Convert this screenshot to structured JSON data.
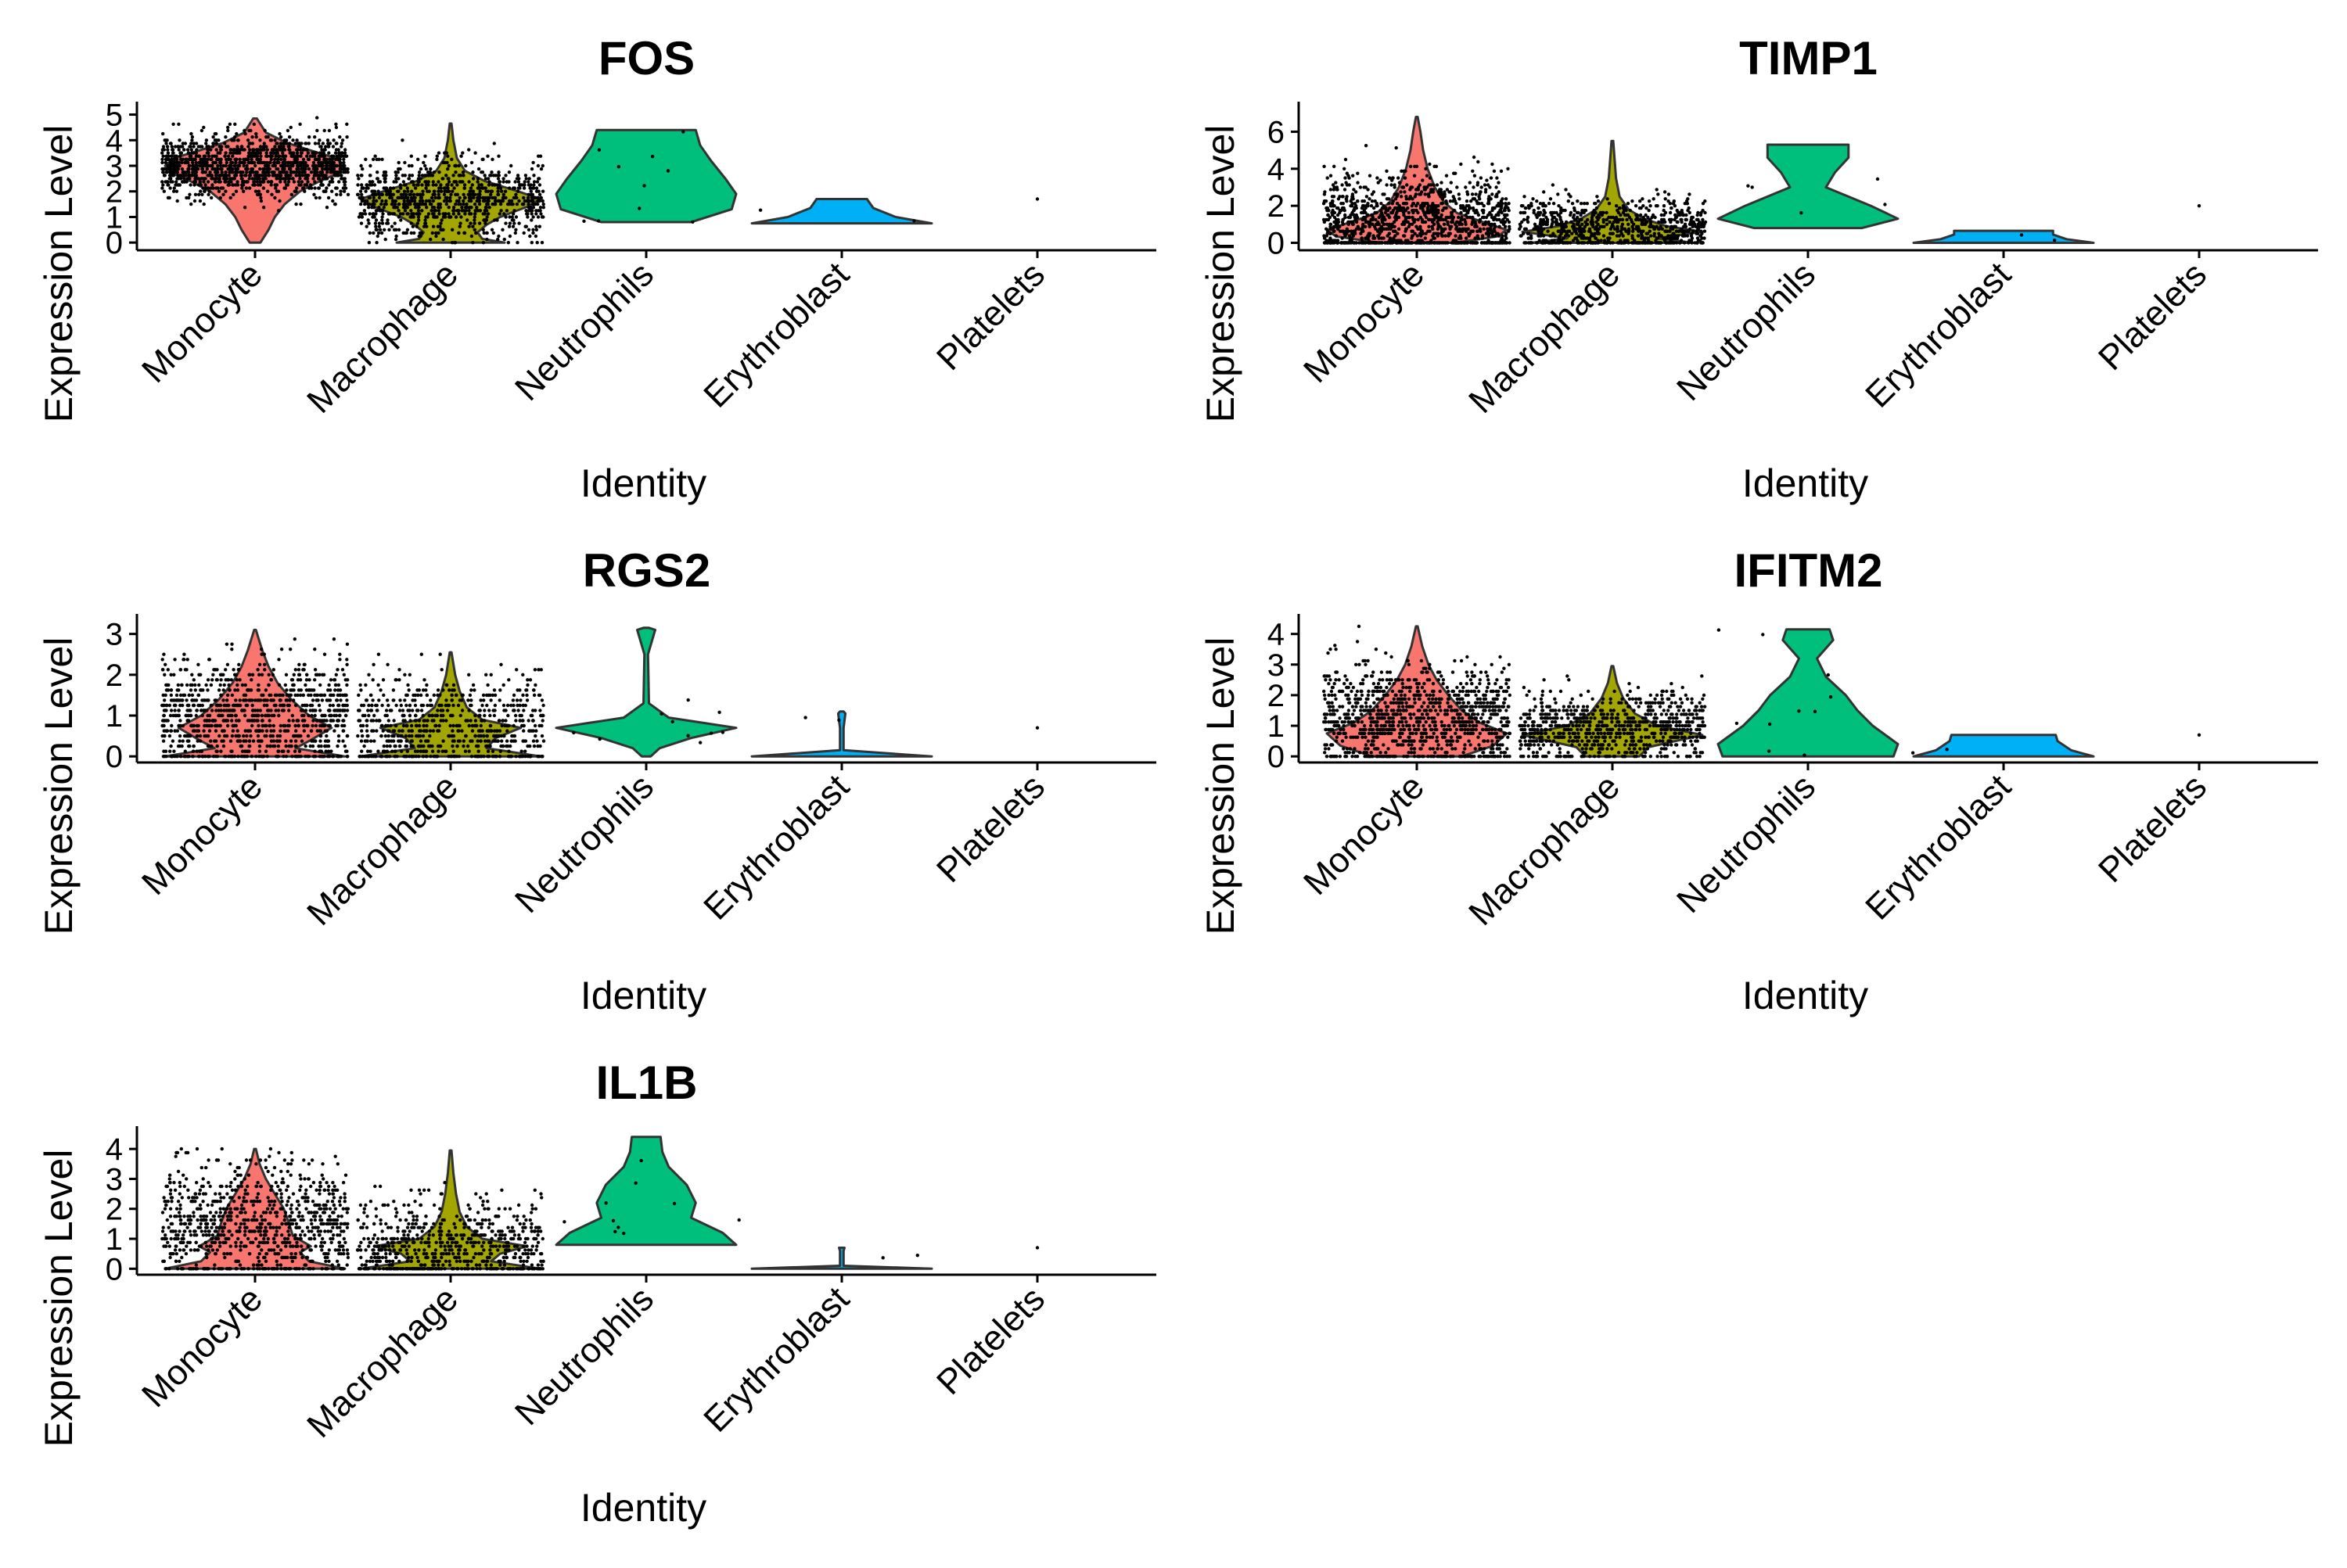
{
  "chart_data": [
    {
      "type": "violin",
      "title": "FOS",
      "xlabel": "Identity",
      "ylabel": "Expression Level",
      "ylim": [
        -0.3,
        5.2
      ],
      "yticks": [
        0,
        1,
        2,
        3,
        4,
        5
      ],
      "categories": [
        "Monocyte",
        "Macrophage",
        "Neutrophils",
        "Erythroblast",
        "Platelets"
      ],
      "colors": [
        "#F8766D",
        "#A3A500",
        "#00BF7D",
        "#00B0F6",
        "#E76BF3"
      ],
      "violins": [
        {
          "category": "Monocyte",
          "min": 0,
          "max": 4.85,
          "profile": [
            [
              0,
              0.06
            ],
            [
              0.5,
              0.15
            ],
            [
              1,
              0.22
            ],
            [
              1.5,
              0.33
            ],
            [
              2,
              0.5
            ],
            [
              2.4,
              0.72
            ],
            [
              2.7,
              0.92
            ],
            [
              3.0,
              1.0
            ],
            [
              3.3,
              0.9
            ],
            [
              3.6,
              0.62
            ],
            [
              3.9,
              0.35
            ],
            [
              4.3,
              0.12
            ],
            [
              4.85,
              0.02
            ]
          ],
          "point_count": 1300,
          "point_mean": 3.0,
          "point_sd": 0.6
        },
        {
          "category": "Macrophage",
          "min": 0,
          "max": 4.65,
          "profile": [
            [
              0,
              0.6
            ],
            [
              0.15,
              0.35
            ],
            [
              0.4,
              0.3
            ],
            [
              0.7,
              0.4
            ],
            [
              1.0,
              0.55
            ],
            [
              1.4,
              0.85
            ],
            [
              1.7,
              1.0
            ],
            [
              2.0,
              0.75
            ],
            [
              2.4,
              0.38
            ],
            [
              2.8,
              0.16
            ],
            [
              3.3,
              0.07
            ],
            [
              4.0,
              0.03
            ],
            [
              4.65,
              0.01
            ]
          ],
          "point_count": 900,
          "point_mean": 1.75,
          "point_sd": 0.75
        },
        {
          "category": "Neutrophils",
          "min": 0.8,
          "max": 4.4,
          "profile": [
            [
              0.8,
              0.5
            ],
            [
              1.3,
              0.95
            ],
            [
              1.9,
              1.0
            ],
            [
              2.5,
              0.88
            ],
            [
              3.2,
              0.72
            ],
            [
              3.8,
              0.6
            ],
            [
              4.4,
              0.55
            ]
          ],
          "point_count": 10,
          "point_mean": 2.5,
          "point_sd": 1.2
        },
        {
          "category": "Erythroblast",
          "min": 0.75,
          "max": 1.7,
          "profile": [
            [
              0.75,
              1.0
            ],
            [
              1.0,
              0.6
            ],
            [
              1.35,
              0.35
            ],
            [
              1.7,
              0.28
            ]
          ],
          "point_count": 2,
          "point_mean": 1.1,
          "point_sd": 0.2
        },
        {
          "category": "Platelets",
          "min": 1.7,
          "max": 1.7,
          "profile": [],
          "point_count": 1,
          "point_mean": 1.7,
          "point_sd": 0
        }
      ]
    },
    {
      "type": "violin",
      "title": "TIMP1",
      "xlabel": "Identity",
      "ylabel": "Expression Level",
      "ylim": [
        -0.4,
        7.2
      ],
      "yticks": [
        0,
        2,
        4,
        6
      ],
      "categories": [
        "Monocyte",
        "Macrophage",
        "Neutrophils",
        "Erythroblast",
        "Platelets"
      ],
      "colors": [
        "#F8766D",
        "#A3A500",
        "#00BF7D",
        "#00B0F6",
        "#E76BF3"
      ],
      "violins": [
        {
          "category": "Monocyte",
          "min": 0,
          "max": 6.8,
          "profile": [
            [
              0,
              0.42
            ],
            [
              0.35,
              0.9
            ],
            [
              0.7,
              1.0
            ],
            [
              1.1,
              0.75
            ],
            [
              1.6,
              0.45
            ],
            [
              2.2,
              0.3
            ],
            [
              3.0,
              0.2
            ],
            [
              4.0,
              0.12
            ],
            [
              5.0,
              0.07
            ],
            [
              6.0,
              0.04
            ],
            [
              6.8,
              0.01
            ]
          ],
          "point_count": 1200,
          "point_mean": 1.2,
          "point_sd": 1.3
        },
        {
          "category": "Macrophage",
          "min": 0,
          "max": 5.5,
          "profile": [
            [
              0,
              0.9
            ],
            [
              0.25,
              0.5
            ],
            [
              0.6,
              1.0
            ],
            [
              0.9,
              0.6
            ],
            [
              1.3,
              0.35
            ],
            [
              1.8,
              0.18
            ],
            [
              2.5,
              0.08
            ],
            [
              3.5,
              0.04
            ],
            [
              5.5,
              0.01
            ]
          ],
          "point_count": 800,
          "point_mean": 0.8,
          "point_sd": 0.8
        },
        {
          "category": "Neutrophils",
          "min": 0.8,
          "max": 5.3,
          "profile": [
            [
              0.8,
              0.6
            ],
            [
              1.3,
              1.0
            ],
            [
              2.0,
              0.7
            ],
            [
              3.0,
              0.2
            ],
            [
              3.8,
              0.3
            ],
            [
              4.6,
              0.45
            ],
            [
              5.3,
              0.45
            ]
          ],
          "point_count": 5,
          "point_mean": 2.5,
          "point_sd": 1.6
        },
        {
          "category": "Erythroblast",
          "min": 0,
          "max": 0.65,
          "profile": [
            [
              0,
              1.0
            ],
            [
              0.2,
              0.7
            ],
            [
              0.45,
              0.55
            ],
            [
              0.65,
              0.55
            ]
          ],
          "point_count": 2,
          "point_mean": 0.3,
          "point_sd": 0.2
        },
        {
          "category": "Platelets",
          "min": 2.0,
          "max": 2.0,
          "profile": [],
          "point_count": 1,
          "point_mean": 2.0,
          "point_sd": 0
        }
      ]
    },
    {
      "type": "violin",
      "title": "RGS2",
      "xlabel": "Identity",
      "ylabel": "Expression Level",
      "ylim": [
        -0.15,
        3.3
      ],
      "yticks": [
        0,
        1,
        2,
        3
      ],
      "categories": [
        "Monocyte",
        "Macrophage",
        "Neutrophils",
        "Erythroblast",
        "Platelets"
      ],
      "colors": [
        "#F8766D",
        "#A3A500",
        "#00BF7D",
        "#00B0F6",
        "#E76BF3"
      ],
      "violins": [
        {
          "category": "Monocyte",
          "min": 0,
          "max": 3.1,
          "profile": [
            [
              0,
              1.0
            ],
            [
              0.2,
              0.45
            ],
            [
              0.4,
              0.62
            ],
            [
              0.7,
              0.85
            ],
            [
              1.0,
              0.6
            ],
            [
              1.4,
              0.4
            ],
            [
              1.8,
              0.25
            ],
            [
              2.2,
              0.15
            ],
            [
              2.6,
              0.08
            ],
            [
              3.1,
              0.01
            ]
          ],
          "point_count": 1000,
          "point_mean": 1.0,
          "point_sd": 0.7
        },
        {
          "category": "Macrophage",
          "min": 0,
          "max": 2.55,
          "profile": [
            [
              0,
              1.0
            ],
            [
              0.2,
              0.4
            ],
            [
              0.45,
              0.5
            ],
            [
              0.7,
              0.78
            ],
            [
              0.9,
              0.35
            ],
            [
              1.2,
              0.18
            ],
            [
              1.6,
              0.1
            ],
            [
              2.0,
              0.05
            ],
            [
              2.55,
              0.01
            ]
          ],
          "point_count": 700,
          "point_mean": 0.7,
          "point_sd": 0.6
        },
        {
          "category": "Neutrophils",
          "min": 0,
          "max": 3.15,
          "profile": [
            [
              0,
              0.05
            ],
            [
              0.2,
              0.15
            ],
            [
              0.45,
              0.5
            ],
            [
              0.7,
              1.0
            ],
            [
              0.95,
              0.25
            ],
            [
              1.3,
              0.03
            ],
            [
              2.5,
              0.02
            ],
            [
              3.1,
              0.1
            ],
            [
              3.15,
              0.03
            ]
          ],
          "point_count": 10,
          "point_mean": 0.7,
          "point_sd": 0.3
        },
        {
          "category": "Erythroblast",
          "min": 0,
          "max": 1.1,
          "profile": [
            [
              0,
              1.0
            ],
            [
              0.15,
              0.02
            ],
            [
              0.7,
              0.02
            ],
            [
              1.05,
              0.04
            ],
            [
              1.1,
              0.02
            ]
          ],
          "point_count": 2,
          "point_mean": 0.6,
          "point_sd": 0.4
        },
        {
          "category": "Platelets",
          "min": 0.7,
          "max": 0.7,
          "profile": [],
          "point_count": 1,
          "point_mean": 0.7,
          "point_sd": 0
        }
      ]
    },
    {
      "type": "violin",
      "title": "IFITM2",
      "xlabel": "Identity",
      "ylabel": "Expression Level",
      "ylim": [
        -0.2,
        4.4
      ],
      "yticks": [
        0,
        1,
        2,
        3,
        4
      ],
      "categories": [
        "Monocyte",
        "Macrophage",
        "Neutrophils",
        "Erythroblast",
        "Platelets"
      ],
      "colors": [
        "#F8766D",
        "#A3A500",
        "#00BF7D",
        "#00B0F6",
        "#E76BF3"
      ],
      "violins": [
        {
          "category": "Monocyte",
          "min": 0,
          "max": 4.25,
          "profile": [
            [
              0,
              0.5
            ],
            [
              0.35,
              0.85
            ],
            [
              0.75,
              1.0
            ],
            [
              1.1,
              0.7
            ],
            [
              1.5,
              0.5
            ],
            [
              2.0,
              0.35
            ],
            [
              2.5,
              0.22
            ],
            [
              3.0,
              0.13
            ],
            [
              3.6,
              0.06
            ],
            [
              4.25,
              0.01
            ]
          ],
          "point_count": 1100,
          "point_mean": 1.3,
          "point_sd": 0.9
        },
        {
          "category": "Macrophage",
          "min": 0,
          "max": 2.95,
          "profile": [
            [
              0,
              0.3
            ],
            [
              0.3,
              0.4
            ],
            [
              0.7,
              1.0
            ],
            [
              1.0,
              0.5
            ],
            [
              1.4,
              0.25
            ],
            [
              1.9,
              0.12
            ],
            [
              2.4,
              0.05
            ],
            [
              2.95,
              0.01
            ]
          ],
          "point_count": 800,
          "point_mean": 0.9,
          "point_sd": 0.6
        },
        {
          "category": "Neutrophils",
          "min": 0,
          "max": 4.15,
          "profile": [
            [
              0,
              0.95
            ],
            [
              0.4,
              1.0
            ],
            [
              1.0,
              0.72
            ],
            [
              1.5,
              0.55
            ],
            [
              2.0,
              0.42
            ],
            [
              2.6,
              0.2
            ],
            [
              3.2,
              0.1
            ],
            [
              3.8,
              0.28
            ],
            [
              4.15,
              0.24
            ]
          ],
          "point_count": 10,
          "point_mean": 1.5,
          "point_sd": 1.1
        },
        {
          "category": "Erythroblast",
          "min": 0,
          "max": 0.7,
          "profile": [
            [
              0,
              1.0
            ],
            [
              0.2,
              0.75
            ],
            [
              0.5,
              0.6
            ],
            [
              0.7,
              0.58
            ]
          ],
          "point_count": 2,
          "point_mean": 0.35,
          "point_sd": 0.2
        },
        {
          "category": "Platelets",
          "min": 0.7,
          "max": 0.7,
          "profile": [],
          "point_count": 1,
          "point_mean": 0.7,
          "point_sd": 0
        }
      ]
    },
    {
      "type": "violin",
      "title": "IL1B",
      "xlabel": "Identity",
      "ylabel": "Expression Level",
      "ylim": [
        -0.2,
        4.5
      ],
      "yticks": [
        0,
        1,
        2,
        3,
        4
      ],
      "categories": [
        "Monocyte",
        "Macrophage",
        "Neutrophils",
        "Erythroblast",
        "Platelets"
      ],
      "colors": [
        "#F8766D",
        "#A3A500",
        "#00BF7D",
        "#00B0F6",
        "#E76BF3"
      ],
      "violins": [
        {
          "category": "Monocyte",
          "min": 0,
          "max": 4.0,
          "profile": [
            [
              0,
              1.0
            ],
            [
              0.25,
              0.6
            ],
            [
              0.55,
              0.5
            ],
            [
              0.75,
              0.62
            ],
            [
              1.1,
              0.42
            ],
            [
              1.5,
              0.38
            ],
            [
              2.0,
              0.32
            ],
            [
              2.5,
              0.22
            ],
            [
              3.0,
              0.12
            ],
            [
              3.5,
              0.05
            ],
            [
              4.0,
              0.01
            ]
          ],
          "point_count": 900,
          "point_mean": 1.4,
          "point_sd": 1.0
        },
        {
          "category": "Macrophage",
          "min": 0,
          "max": 3.95,
          "profile": [
            [
              0,
              1.0
            ],
            [
              0.25,
              0.45
            ],
            [
              0.5,
              0.55
            ],
            [
              0.75,
              0.85
            ],
            [
              1.0,
              0.35
            ],
            [
              1.4,
              0.18
            ],
            [
              1.9,
              0.1
            ],
            [
              2.5,
              0.06
            ],
            [
              3.2,
              0.03
            ],
            [
              3.95,
              0.01
            ]
          ],
          "point_count": 650,
          "point_mean": 0.8,
          "point_sd": 0.8
        },
        {
          "category": "Neutrophils",
          "min": 0.8,
          "max": 4.4,
          "profile": [
            [
              0.8,
              1.0
            ],
            [
              1.2,
              0.85
            ],
            [
              1.7,
              0.5
            ],
            [
              2.2,
              0.55
            ],
            [
              2.8,
              0.45
            ],
            [
              3.4,
              0.25
            ],
            [
              3.9,
              0.18
            ],
            [
              4.4,
              0.16
            ]
          ],
          "point_count": 10,
          "point_mean": 1.6,
          "point_sd": 0.9
        },
        {
          "category": "Erythroblast",
          "min": 0,
          "max": 0.7,
          "profile": [
            [
              0,
              1.0
            ],
            [
              0.1,
              0.02
            ],
            [
              0.6,
              0.02
            ],
            [
              0.7,
              0.03
            ]
          ],
          "point_count": 2,
          "point_mean": 0.35,
          "point_sd": 0.2
        },
        {
          "category": "Platelets",
          "min": 0.7,
          "max": 0.7,
          "profile": [],
          "point_count": 1,
          "point_mean": 0.7,
          "point_sd": 0
        }
      ]
    }
  ]
}
